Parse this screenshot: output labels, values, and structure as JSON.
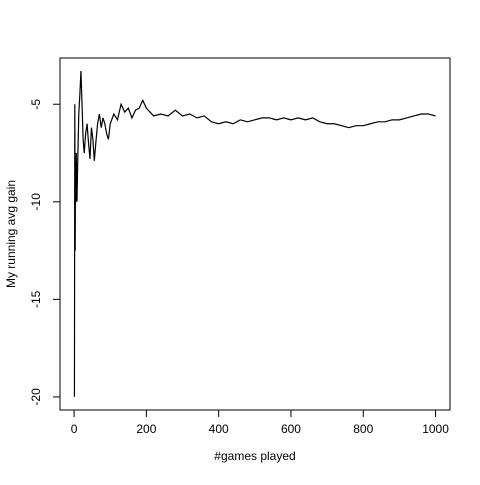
{
  "chart_data": {
    "type": "line",
    "xlabel": "#games played",
    "ylabel": "My running avg gain",
    "x": [
      1,
      2,
      3,
      4,
      5,
      6,
      8,
      10,
      13,
      16,
      19,
      22,
      25,
      28,
      32,
      36,
      40,
      44,
      48,
      52,
      56,
      60,
      65,
      70,
      75,
      80,
      85,
      90,
      95,
      100,
      110,
      120,
      130,
      140,
      150,
      160,
      170,
      180,
      190,
      200,
      220,
      240,
      260,
      280,
      300,
      320,
      340,
      360,
      380,
      400,
      420,
      440,
      460,
      480,
      500,
      520,
      540,
      560,
      580,
      600,
      620,
      640,
      660,
      680,
      700,
      720,
      740,
      760,
      780,
      800,
      820,
      840,
      860,
      880,
      900,
      920,
      940,
      960,
      980,
      1000
    ],
    "values": [
      -20,
      -5,
      -12.5,
      -8,
      -10,
      -7.5,
      -10,
      -8,
      -5.5,
      -4.5,
      -3.3,
      -5,
      -6.8,
      -7.5,
      -6.5,
      -6,
      -7,
      -7.8,
      -6.2,
      -6.8,
      -7.9,
      -7,
      -6,
      -5.5,
      -6.2,
      -5.7,
      -6,
      -6.5,
      -6.8,
      -6,
      -5.5,
      -5.8,
      -5,
      -5.4,
      -5.2,
      -5.7,
      -5.3,
      -5.2,
      -4.8,
      -5.2,
      -5.6,
      -5.5,
      -5.6,
      -5.3,
      -5.6,
      -5.5,
      -5.7,
      -5.6,
      -5.9,
      -6.0,
      -5.9,
      -6.0,
      -5.8,
      -5.9,
      -5.8,
      -5.7,
      -5.7,
      -5.8,
      -5.7,
      -5.8,
      -5.7,
      -5.8,
      -5.7,
      -5.9,
      -6.0,
      -6.0,
      -6.1,
      -6.2,
      -6.1,
      -6.1,
      -6.0,
      -5.9,
      -5.9,
      -5.8,
      -5.8,
      -5.7,
      -5.6,
      -5.5,
      -5.5,
      -5.6
    ],
    "color": "#000000",
    "xlim": [
      -38.96,
      1039.96
    ],
    "xticks": [
      0,
      200,
      400,
      600,
      800,
      1000
    ],
    "ylim": [
      -20.67,
      -2.63
    ],
    "yticks": [
      -20,
      -15,
      -10,
      -5
    ]
  }
}
